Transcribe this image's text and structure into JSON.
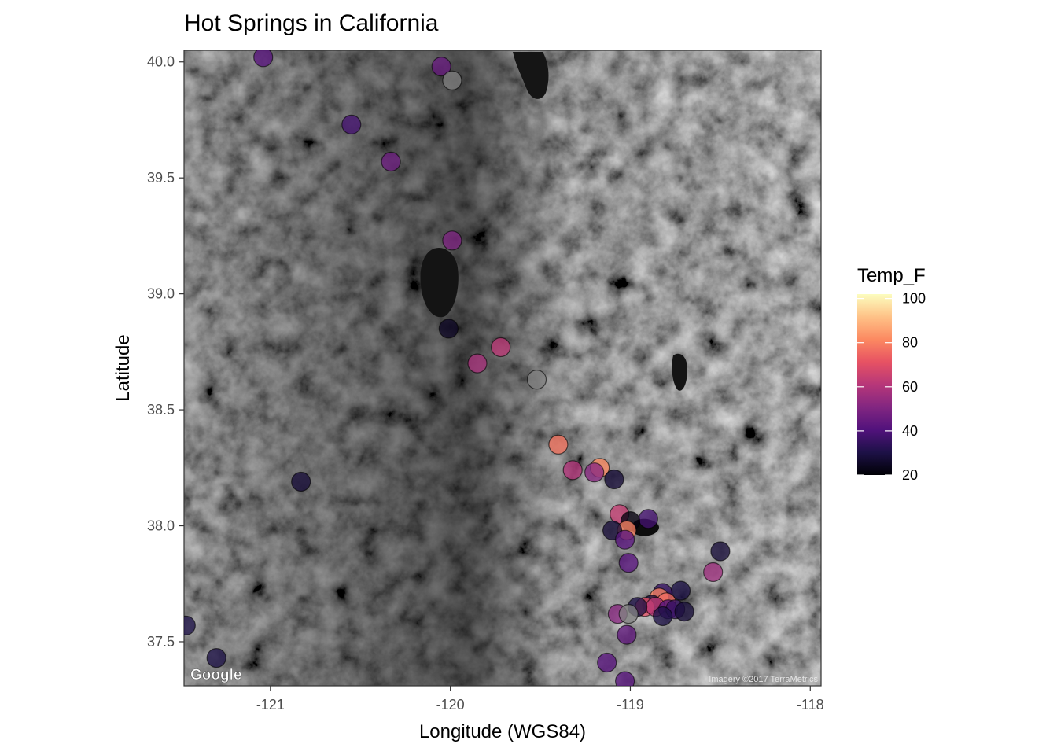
{
  "chart_data": {
    "type": "scatter",
    "title": "Hot Springs in California",
    "xlabel": "Longitude (WGS84)",
    "ylabel": "Latitude",
    "xlim": [
      -121.48,
      -117.94
    ],
    "ylim": [
      37.31,
      40.05
    ],
    "xticks": [
      -121,
      -120,
      -119,
      -118
    ],
    "yticks": [
      37.5,
      38.0,
      38.5,
      39.0,
      39.5,
      40.0
    ],
    "ytick_labels": [
      "37.5",
      "38.0",
      "38.5",
      "39.0",
      "39.5",
      "40.0"
    ],
    "grid": false,
    "color_legend": {
      "title": "Temp_F",
      "min": 20,
      "max": 102,
      "ticks": [
        20,
        40,
        60,
        80,
        100
      ],
      "placement": "right",
      "palette": [
        "#000004",
        "#1d1147",
        "#51127c",
        "#822681",
        "#b73779",
        "#e75263",
        "#fc8961",
        "#fec287",
        "#fcfdbf"
      ]
    },
    "na_color": "#808080",
    "basemap": {
      "logo": "Google",
      "attribution": "Imagery ©2017 TerraMetrics"
    },
    "points": [
      {
        "lon": -121.04,
        "lat": 40.02,
        "temp": 42
      },
      {
        "lon": -120.05,
        "lat": 39.98,
        "temp": 45
      },
      {
        "lon": -119.99,
        "lat": 39.92,
        "temp": null
      },
      {
        "lon": -120.55,
        "lat": 39.73,
        "temp": 38
      },
      {
        "lon": -120.33,
        "lat": 39.57,
        "temp": 46
      },
      {
        "lon": -119.99,
        "lat": 39.23,
        "temp": 50
      },
      {
        "lon": -120.01,
        "lat": 38.85,
        "temp": 25
      },
      {
        "lon": -119.72,
        "lat": 38.77,
        "temp": 62
      },
      {
        "lon": -119.85,
        "lat": 38.7,
        "temp": 58
      },
      {
        "lon": -119.52,
        "lat": 38.63,
        "temp": null
      },
      {
        "lon": -119.4,
        "lat": 38.35,
        "temp": 78
      },
      {
        "lon": -119.17,
        "lat": 38.25,
        "temp": 82
      },
      {
        "lon": -119.32,
        "lat": 38.24,
        "temp": 60
      },
      {
        "lon": -119.2,
        "lat": 38.23,
        "temp": 52
      },
      {
        "lon": -119.09,
        "lat": 38.2,
        "temp": 28
      },
      {
        "lon": -120.83,
        "lat": 38.19,
        "temp": 28
      },
      {
        "lon": -119.06,
        "lat": 38.05,
        "temp": 64
      },
      {
        "lon": -118.9,
        "lat": 38.03,
        "temp": 38
      },
      {
        "lon": -119.0,
        "lat": 38.02,
        "temp": 22
      },
      {
        "lon": -119.02,
        "lat": 37.98,
        "temp": 80
      },
      {
        "lon": -119.1,
        "lat": 37.98,
        "temp": 28
      },
      {
        "lon": -119.03,
        "lat": 37.94,
        "temp": 42
      },
      {
        "lon": -118.5,
        "lat": 37.89,
        "temp": 28
      },
      {
        "lon": -119.01,
        "lat": 37.84,
        "temp": 42
      },
      {
        "lon": -118.54,
        "lat": 37.8,
        "temp": 56
      },
      {
        "lon": -118.72,
        "lat": 37.72,
        "temp": 30
      },
      {
        "lon": -118.82,
        "lat": 37.71,
        "temp": 35
      },
      {
        "lon": -118.84,
        "lat": 37.69,
        "temp": 80
      },
      {
        "lon": -118.8,
        "lat": 37.67,
        "temp": 76
      },
      {
        "lon": -118.88,
        "lat": 37.66,
        "temp": 28
      },
      {
        "lon": -118.92,
        "lat": 37.65,
        "temp": 70
      },
      {
        "lon": -118.86,
        "lat": 37.65,
        "temp": 62
      },
      {
        "lon": -118.96,
        "lat": 37.65,
        "temp": 30
      },
      {
        "lon": -118.79,
        "lat": 37.64,
        "temp": 40
      },
      {
        "lon": -118.75,
        "lat": 37.64,
        "temp": 35
      },
      {
        "lon": -118.7,
        "lat": 37.63,
        "temp": 28
      },
      {
        "lon": -118.82,
        "lat": 37.61,
        "temp": 30
      },
      {
        "lon": -119.07,
        "lat": 37.62,
        "temp": 52
      },
      {
        "lon": -119.01,
        "lat": 37.62,
        "temp": null
      },
      {
        "lon": -119.02,
        "lat": 37.53,
        "temp": 44
      },
      {
        "lon": -121.47,
        "lat": 37.57,
        "temp": 30
      },
      {
        "lon": -121.3,
        "lat": 37.43,
        "temp": 30
      },
      {
        "lon": -119.13,
        "lat": 37.41,
        "temp": 42
      },
      {
        "lon": -119.03,
        "lat": 37.33,
        "temp": 42
      }
    ]
  }
}
